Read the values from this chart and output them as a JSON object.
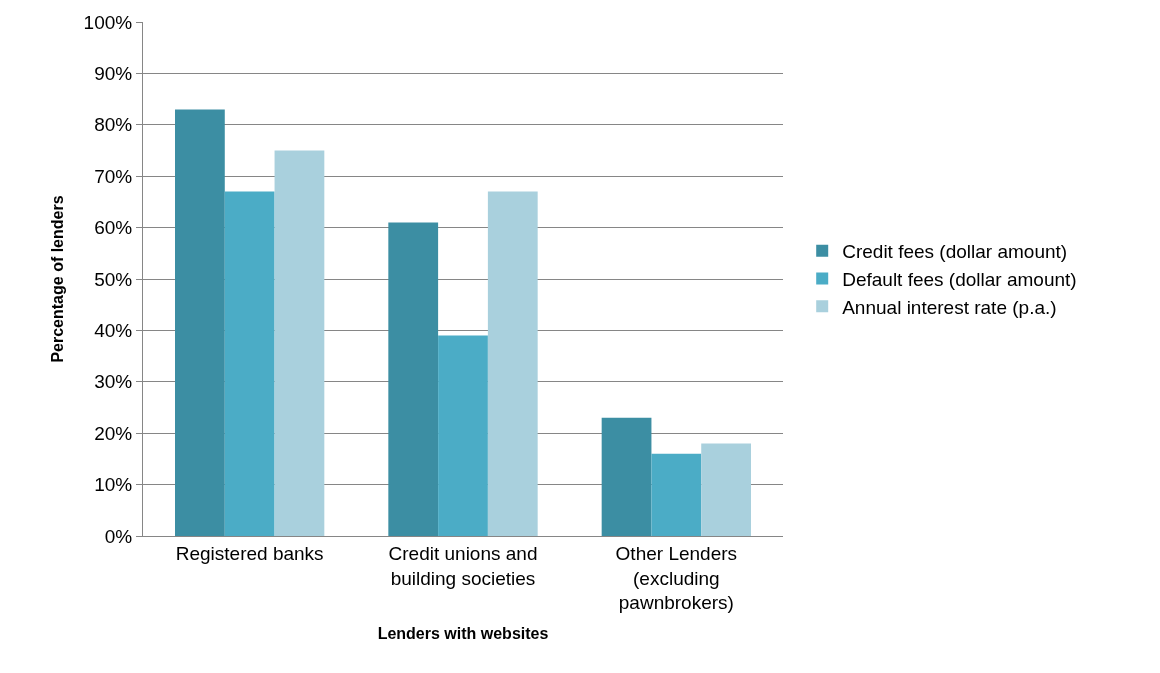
{
  "chart_data": {
    "type": "bar",
    "xlabel": "Lenders with websites",
    "ylabel": "Percentage of lenders",
    "categories": [
      "Registered banks",
      "Credit unions and building societies",
      "Other Lenders (excluding pawnbrokers)"
    ],
    "series": [
      {
        "name": "Credit fees (dollar amount)",
        "color": "#3c8ea3",
        "values": [
          83,
          61,
          23
        ]
      },
      {
        "name": "Default fees (dollar amount)",
        "color": "#4bacc6",
        "values": [
          67,
          39,
          16
        ]
      },
      {
        "name": "Annual interest rate (p.a.)",
        "color": "#a9d0dd",
        "values": [
          75,
          67,
          18
        ]
      }
    ],
    "ylim": [
      0,
      100
    ],
    "yticks": [
      {
        "value": 0,
        "label": "0%"
      },
      {
        "value": 10,
        "label": "10%"
      },
      {
        "value": 20,
        "label": "20%"
      },
      {
        "value": 30,
        "label": "30%"
      },
      {
        "value": 40,
        "label": "40%"
      },
      {
        "value": 50,
        "label": "50%"
      },
      {
        "value": 60,
        "label": "60%"
      },
      {
        "value": 70,
        "label": "70%"
      },
      {
        "value": 80,
        "label": "80%"
      },
      {
        "value": 90,
        "label": "90%"
      },
      {
        "value": 100,
        "label": "100%"
      }
    ],
    "grid": "y",
    "legend": "right"
  }
}
